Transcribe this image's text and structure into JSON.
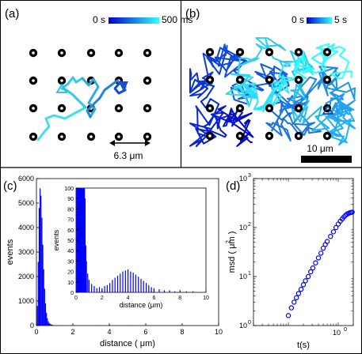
{
  "panels": {
    "a": {
      "letter": "(a)",
      "colorbar": {
        "min_label": "0 s",
        "max_label": "500 ms",
        "colors": [
          "#0000cc",
          "#33ffff"
        ]
      },
      "scale_label": "6.3 μm"
    },
    "b": {
      "letter": "(b)",
      "colorbar": {
        "min_label": "0 s",
        "max_label": "5 s",
        "colors": [
          "#0000cc",
          "#33ffff"
        ]
      },
      "scale_label": "10 μm"
    },
    "c": {
      "letter": "(c)"
    },
    "d": {
      "letter": "(d)"
    }
  },
  "chart_data": [
    {
      "id": "c-main",
      "type": "bar",
      "xlabel": "distance ( μm)",
      "ylabel": "events",
      "xlim": [
        0,
        10
      ],
      "ylim": [
        0,
        6000
      ],
      "xticks": [
        "0",
        "2",
        "4",
        "6",
        "8",
        "10"
      ],
      "yticks": [
        "0",
        "1000",
        "2000",
        "3000",
        "4000",
        "5000",
        "6000"
      ],
      "color": "#0000ff",
      "bins": [
        [
          0.05,
          800
        ],
        [
          0.1,
          2600
        ],
        [
          0.15,
          4800
        ],
        [
          0.2,
          5600
        ],
        [
          0.25,
          5300
        ],
        [
          0.3,
          4400
        ],
        [
          0.35,
          3300
        ],
        [
          0.4,
          2300
        ],
        [
          0.45,
          1500
        ],
        [
          0.5,
          900
        ],
        [
          0.55,
          520
        ],
        [
          0.6,
          300
        ],
        [
          0.65,
          170
        ],
        [
          0.7,
          100
        ],
        [
          0.75,
          70
        ],
        [
          0.8,
          50
        ],
        [
          0.85,
          35
        ],
        [
          0.9,
          25
        ],
        [
          1.0,
          15
        ],
        [
          1.2,
          10
        ],
        [
          1.5,
          8
        ],
        [
          2.0,
          6
        ],
        [
          3.0,
          12
        ],
        [
          3.5,
          18
        ],
        [
          4.0,
          20
        ],
        [
          4.5,
          15
        ],
        [
          5.0,
          10
        ],
        [
          6.0,
          4
        ]
      ]
    },
    {
      "id": "c-inset",
      "type": "bar",
      "xlabel": "distance (μm)",
      "ylabel": "events",
      "xlim": [
        0,
        10
      ],
      "ylim": [
        0,
        100
      ],
      "xticks": [
        "0",
        "2",
        "4",
        "6",
        "8",
        "10"
      ],
      "yticks": [
        "0",
        "10",
        "20",
        "30",
        "40",
        "50",
        "60",
        "70",
        "80",
        "90",
        "100"
      ],
      "color": "#0000ff",
      "bins": [
        [
          0.05,
          100
        ],
        [
          0.1,
          100
        ],
        [
          0.15,
          100
        ],
        [
          0.2,
          100
        ],
        [
          0.25,
          100
        ],
        [
          0.3,
          100
        ],
        [
          0.35,
          100
        ],
        [
          0.4,
          100
        ],
        [
          0.45,
          100
        ],
        [
          0.5,
          100
        ],
        [
          0.55,
          100
        ],
        [
          0.6,
          100
        ],
        [
          0.65,
          100
        ],
        [
          0.7,
          90
        ],
        [
          0.75,
          45
        ],
        [
          0.8,
          30
        ],
        [
          0.9,
          18
        ],
        [
          1.0,
          12
        ],
        [
          1.2,
          8
        ],
        [
          1.4,
          6
        ],
        [
          1.6,
          4
        ],
        [
          1.8,
          5
        ],
        [
          2.0,
          4
        ],
        [
          2.2,
          6
        ],
        [
          2.4,
          7
        ],
        [
          2.6,
          9
        ],
        [
          2.8,
          12
        ],
        [
          3.0,
          14
        ],
        [
          3.2,
          16
        ],
        [
          3.4,
          18
        ],
        [
          3.6,
          20
        ],
        [
          3.8,
          21
        ],
        [
          4.0,
          22
        ],
        [
          4.2,
          20
        ],
        [
          4.4,
          19
        ],
        [
          4.6,
          17
        ],
        [
          4.8,
          15
        ],
        [
          5.0,
          13
        ],
        [
          5.2,
          11
        ],
        [
          5.4,
          9
        ],
        [
          5.6,
          7
        ],
        [
          5.8,
          5
        ],
        [
          6.0,
          4
        ],
        [
          6.4,
          3
        ],
        [
          6.8,
          2
        ],
        [
          7.2,
          2
        ],
        [
          7.6,
          1
        ],
        [
          8.0,
          1
        ],
        [
          8.5,
          1
        ],
        [
          9.0,
          1
        ]
      ]
    },
    {
      "id": "d",
      "type": "scatter",
      "xlabel": "t(s)",
      "ylabel": "msd ( μm )",
      "xscale": "log",
      "yscale": "log",
      "xlim": [
        0.02,
        2
      ],
      "ylim": [
        1,
        1000
      ],
      "xticks": [
        "10"
      ],
      "yticks": [
        "10",
        "10",
        "10",
        "10"
      ],
      "color": "#0000ff",
      "points": [
        [
          0.1,
          1.6
        ],
        [
          0.115,
          2.3
        ],
        [
          0.13,
          3.0
        ],
        [
          0.145,
          3.7
        ],
        [
          0.16,
          4.5
        ],
        [
          0.18,
          5.5
        ],
        [
          0.2,
          6.8
        ],
        [
          0.22,
          8.2
        ],
        [
          0.25,
          10
        ],
        [
          0.28,
          12.5
        ],
        [
          0.31,
          15
        ],
        [
          0.35,
          19
        ],
        [
          0.4,
          24
        ],
        [
          0.45,
          30
        ],
        [
          0.5,
          38
        ],
        [
          0.55,
          45
        ],
        [
          0.6,
          52
        ],
        [
          0.7,
          66
        ],
        [
          0.8,
          82
        ],
        [
          0.9,
          100
        ],
        [
          1.0,
          118
        ],
        [
          1.1,
          135
        ],
        [
          1.2,
          150
        ],
        [
          1.3,
          165
        ],
        [
          1.4,
          178
        ],
        [
          1.5,
          188
        ],
        [
          1.6,
          195
        ],
        [
          1.7,
          200
        ],
        [
          1.8,
          204
        ],
        [
          1.9,
          206
        ]
      ]
    }
  ]
}
